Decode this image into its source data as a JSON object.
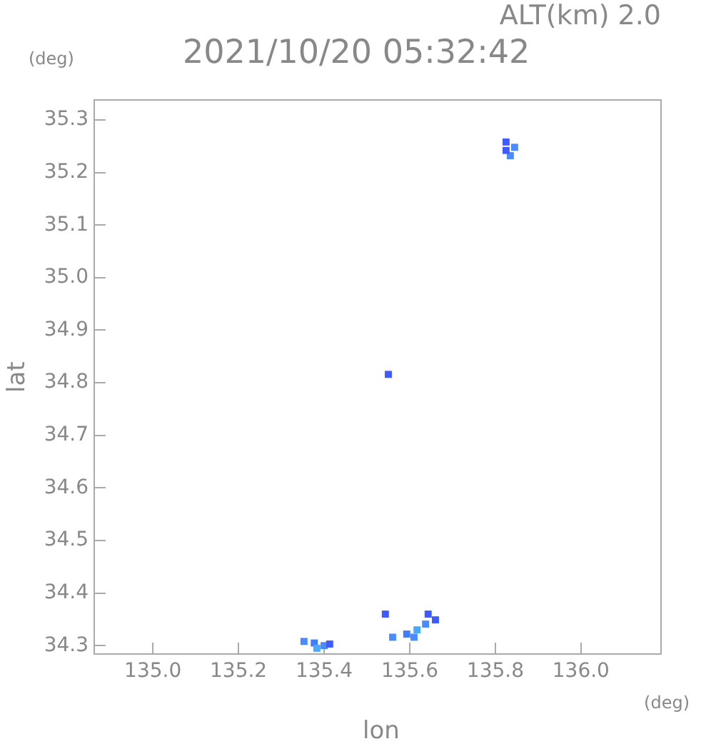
{
  "chart_data": {
    "type": "scatter",
    "title": "2021/10/20 05:32:42",
    "subtitle": "ALT(km) 2.0",
    "xlabel": "lon",
    "ylabel": "lat",
    "annotations": [
      "(deg)",
      "(deg)"
    ],
    "series": [
      {
        "x": [
          135.825,
          135.845,
          135.835,
          135.825,
          135.55,
          135.353,
          135.377,
          135.4,
          135.413,
          135.383,
          135.543,
          135.56,
          135.593,
          135.617,
          135.637,
          135.643,
          135.66,
          135.61
        ],
        "values": [
          35.258,
          35.248,
          35.232,
          35.242,
          34.816,
          34.308,
          34.305,
          34.3,
          34.303,
          34.295,
          34.36,
          34.316,
          34.322,
          34.33,
          34.341,
          34.36,
          34.349,
          34.316
        ],
        "colors": [
          "#3f5bff",
          "#4a8cff",
          "#4a8cff",
          "#3f5bff",
          "#3f5bff",
          "#4a8cff",
          "#3f7cff",
          "#4a8cff",
          "#3f5bff",
          "#4aa8ff",
          "#3f5bff",
          "#4a8cff",
          "#3f7cff",
          "#4aa8ff",
          "#4a8cff",
          "#3f5bff",
          "#3f5bff",
          "#4a8cff"
        ]
      }
    ],
    "marker": "square",
    "xlim": [
      134.863,
      136.187
    ],
    "ylim": [
      34.284,
      35.338
    ],
    "xticks": [
      {
        "value": 135,
        "label": "135.0"
      },
      135.2,
      135.4,
      135.6,
      135.8,
      {
        "value": 136,
        "label": "136.0"
      }
    ],
    "yticks": [
      34.3,
      34.4,
      34.5,
      34.6,
      34.7,
      34.8,
      34.9,
      {
        "value": 35,
        "label": "35.0"
      },
      35.1,
      35.2,
      35.3
    ],
    "grid": false,
    "legend": false
  }
}
